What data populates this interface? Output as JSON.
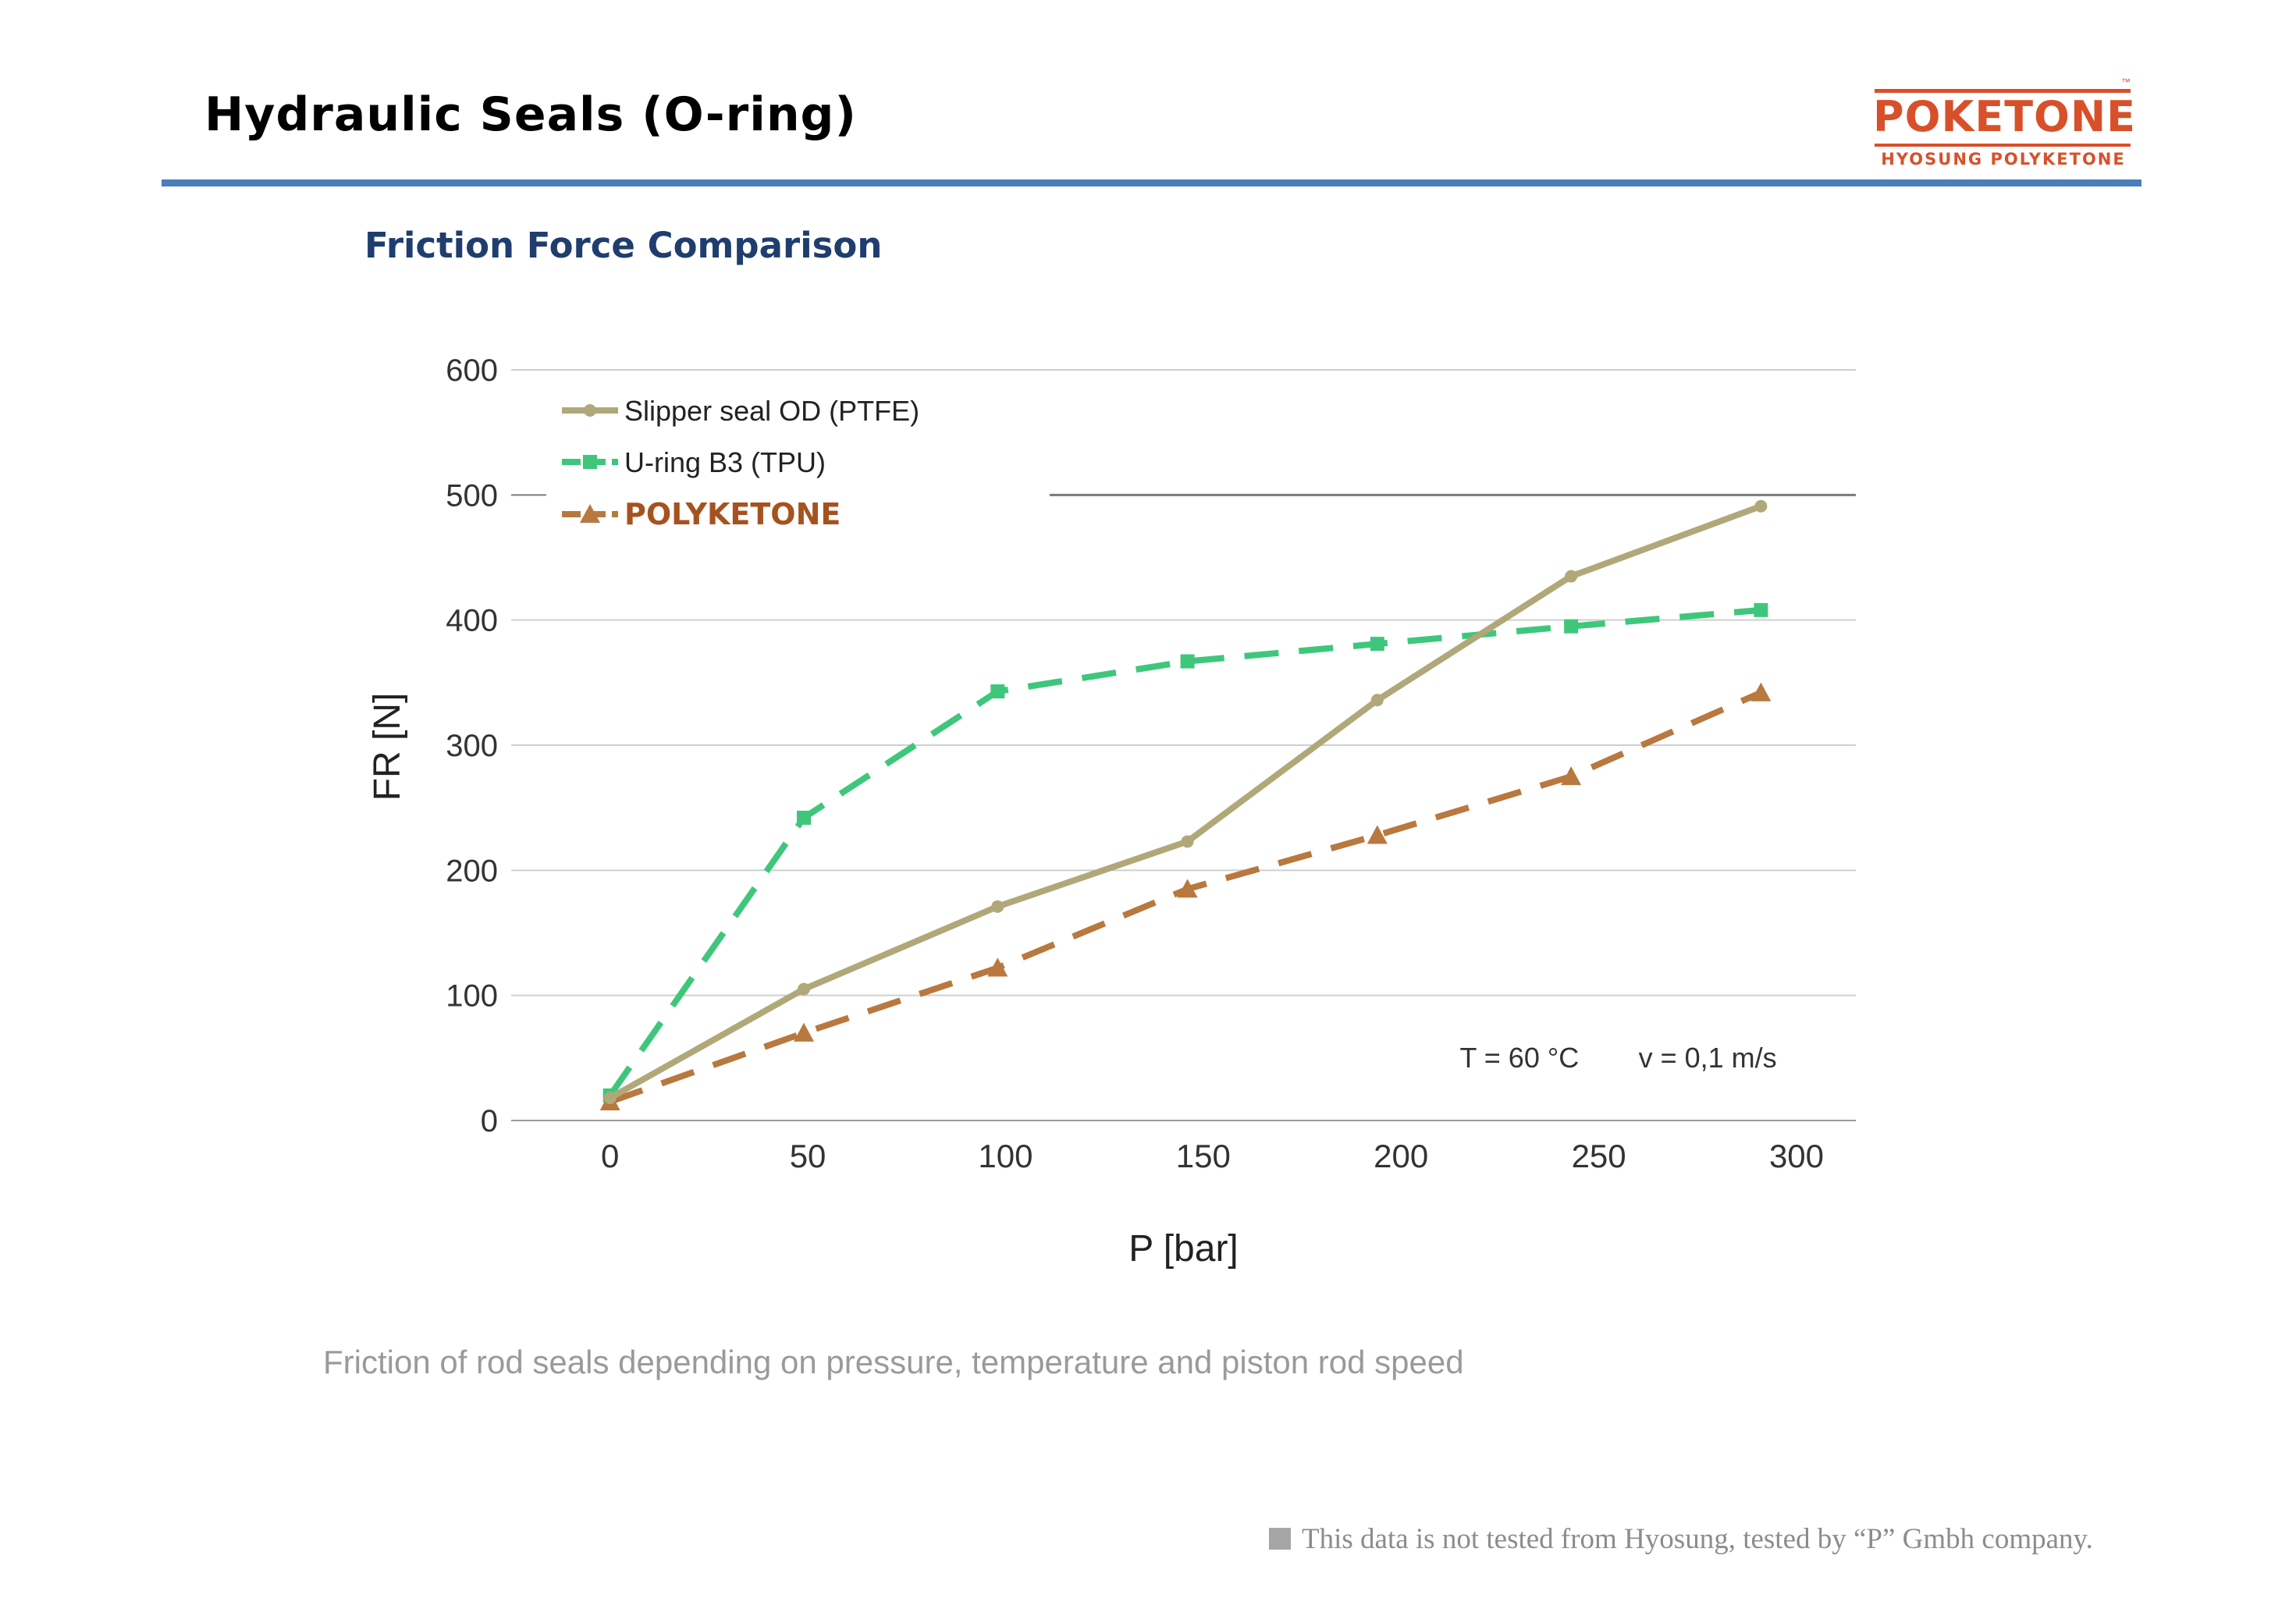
{
  "slide": {
    "title": "Hydraulic Seals (O-ring)",
    "section_title": "Friction Force Comparison",
    "caption": "Friction of rod seals depending on pressure, temperature and piston rod speed",
    "footnote": "This data is not tested from Hyosung, tested by “P” Gmbh company."
  },
  "brand": {
    "name": "POKETONE",
    "tagline": "HYOSUNG POLYKETONE",
    "trademark": "™",
    "color": "#d8502a"
  },
  "chart_data": {
    "type": "line",
    "title": "",
    "xlabel": "P [bar]",
    "ylabel": "FR [N]",
    "xlim": [
      -25,
      315
    ],
    "ylim": [
      0,
      600
    ],
    "x_ticks": [
      0,
      50,
      100,
      150,
      200,
      250,
      300
    ],
    "y_ticks": [
      0,
      100,
      200,
      300,
      400,
      500,
      600
    ],
    "grid": true,
    "legend_position": "top-left",
    "annotations": [
      {
        "text": "T = 60 °C",
        "x": 245,
        "y": 50
      },
      {
        "text": "v = 0,1 m/s",
        "x": 295,
        "y": 50
      }
    ],
    "series": [
      {
        "name": "Slipper seal OD  (PTFE)",
        "color": "#b0a878",
        "marker": "circle",
        "dashed": false,
        "x": [
          0,
          49,
          98,
          146,
          194,
          243,
          291
        ],
        "y": [
          18,
          105,
          171,
          223,
          336,
          435,
          491
        ]
      },
      {
        "name": "U-ring B3  (TPU)",
        "color": "#3ec77b",
        "marker": "square",
        "dashed": true,
        "x": [
          0,
          49,
          98,
          146,
          194,
          243,
          291
        ],
        "y": [
          20,
          242,
          343,
          367,
          381,
          395,
          408
        ]
      },
      {
        "name": "POLYKETONE",
        "color": "#b8783e",
        "label_color": "#a6521f",
        "marker": "triangle",
        "dashed": true,
        "x": [
          0,
          49,
          98,
          146,
          194,
          243,
          291
        ],
        "y": [
          15,
          70,
          122,
          185,
          228,
          275,
          342
        ]
      }
    ]
  }
}
